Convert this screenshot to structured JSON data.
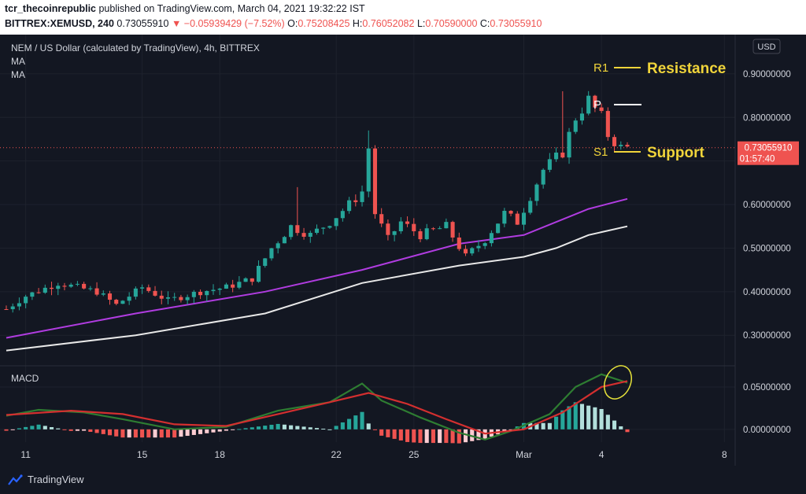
{
  "header": {
    "publisher": "tcr_thecoinrepublic",
    "published_text": "published on TradingView.com, March 04, 2021 19:32:22 IST",
    "symbol": "BITTREX:XEMUSD, 240",
    "last": "0.73055910",
    "change": "−0.05939429 (−7.52%)",
    "open_label": "O:",
    "open": "0.75208425",
    "high_label": "H:",
    "high": "0.76052082",
    "low_label": "L:",
    "low": "0.70590000",
    "close_label": "C:",
    "close": "0.73055910"
  },
  "legend": {
    "title": "NEM / US Dollar (calculated by TradingView), 4h, BITTREX",
    "ma1": "MA",
    "ma2": "MA",
    "macd": "MACD"
  },
  "price_axis": {
    "currency": "USD",
    "ticks": [
      "0.90000000",
      "0.80000000",
      "0.60000000",
      "0.50000000",
      "0.40000000",
      "0.30000000"
    ],
    "tick_values": [
      0.9,
      0.8,
      0.6,
      0.5,
      0.4,
      0.3
    ],
    "current_price": "0.73055910",
    "countdown": "01:57:40"
  },
  "macd_axis": {
    "ticks": [
      "0.05000000",
      "0.00000000"
    ],
    "tick_values": [
      0.05,
      0.0
    ]
  },
  "time_axis": {
    "labels": [
      "11",
      "15",
      "18",
      "22",
      "25",
      "Mar",
      "4",
      "8"
    ]
  },
  "annotations": {
    "r1_label": "R1",
    "resistance": "Resistance",
    "pivot_label": "P",
    "s1_label": "S1",
    "support": "Support"
  },
  "footer": {
    "brand": "TradingView"
  },
  "colors": {
    "background": "#131722",
    "up": "#26a69a",
    "down": "#ef5350",
    "ma_fast": "#b03ce0",
    "ma_slow": "#e8e8e8",
    "macd_line": "#2e7d32",
    "signal_line": "#d32f2f",
    "annotation": "#f0d43a"
  },
  "chart_data": [
    {
      "type": "candlestick",
      "title": "NEM / US Dollar (calculated by TradingView), 4h, BITTREX",
      "ylim": [
        0.23,
        0.99
      ],
      "x_labels": [
        "11",
        "15",
        "18",
        "22",
        "25",
        "Mar",
        "4",
        "8"
      ],
      "key_levels": {
        "R1": 0.88,
        "P": 0.813,
        "S1": 0.695,
        "last": 0.7305591
      },
      "close_path": [
        [
          0,
          0.36
        ],
        [
          3,
          0.39
        ],
        [
          8,
          0.42
        ],
        [
          14,
          0.4
        ],
        [
          17,
          0.37
        ],
        [
          21,
          0.41
        ],
        [
          25,
          0.38
        ],
        [
          30,
          0.4
        ],
        [
          34,
          0.41
        ],
        [
          38,
          0.43
        ],
        [
          41,
          0.5
        ],
        [
          44,
          0.55
        ],
        [
          47,
          0.53
        ],
        [
          50,
          0.56
        ],
        [
          53,
          0.6
        ],
        [
          55,
          0.63
        ],
        [
          56,
          0.73
        ],
        [
          57,
          0.58
        ],
        [
          59,
          0.52
        ],
        [
          61,
          0.56
        ],
        [
          64,
          0.53
        ],
        [
          68,
          0.55
        ],
        [
          71,
          0.48
        ],
        [
          74,
          0.52
        ],
        [
          77,
          0.58
        ],
        [
          79,
          0.56
        ],
        [
          81,
          0.62
        ],
        [
          83,
          0.68
        ],
        [
          86,
          0.72
        ],
        [
          88,
          0.8
        ],
        [
          90,
          0.84
        ],
        [
          92,
          0.8
        ],
        [
          93,
          0.76
        ],
        [
          95,
          0.73
        ]
      ],
      "ma_fast": [
        [
          0,
          0.294
        ],
        [
          20,
          0.35
        ],
        [
          40,
          0.4
        ],
        [
          55,
          0.45
        ],
        [
          70,
          0.51
        ],
        [
          80,
          0.53
        ],
        [
          85,
          0.56
        ],
        [
          90,
          0.59
        ],
        [
          96,
          0.613
        ]
      ],
      "ma_slow": [
        [
          0,
          0.265
        ],
        [
          20,
          0.3
        ],
        [
          40,
          0.35
        ],
        [
          55,
          0.42
        ],
        [
          70,
          0.46
        ],
        [
          80,
          0.48
        ],
        [
          85,
          0.5
        ],
        [
          90,
          0.53
        ],
        [
          96,
          0.55
        ]
      ]
    },
    {
      "type": "line",
      "title": "MACD",
      "ylim": [
        -0.015,
        0.075
      ],
      "series": [
        {
          "name": "MACD",
          "points": [
            [
              0,
              0.016
            ],
            [
              5,
              0.023
            ],
            [
              12,
              0.02
            ],
            [
              18,
              0.012
            ],
            [
              26,
              0.0
            ],
            [
              34,
              0.003
            ],
            [
              42,
              0.022
            ],
            [
              50,
              0.032
            ],
            [
              55,
              0.054
            ],
            [
              58,
              0.034
            ],
            [
              64,
              0.014
            ],
            [
              70,
              -0.004
            ],
            [
              74,
              -0.012
            ],
            [
              78,
              -0.002
            ],
            [
              84,
              0.018
            ],
            [
              88,
              0.05
            ],
            [
              92,
              0.065
            ],
            [
              96,
              0.055
            ]
          ]
        },
        {
          "name": "Signal",
          "points": [
            [
              0,
              0.017
            ],
            [
              10,
              0.022
            ],
            [
              18,
              0.018
            ],
            [
              26,
              0.006
            ],
            [
              34,
              0.004
            ],
            [
              42,
              0.018
            ],
            [
              50,
              0.032
            ],
            [
              56,
              0.043
            ],
            [
              62,
              0.03
            ],
            [
              68,
              0.012
            ],
            [
              74,
              -0.005
            ],
            [
              80,
              0.0
            ],
            [
              86,
              0.02
            ],
            [
              92,
              0.05
            ],
            [
              96,
              0.057
            ]
          ]
        }
      ]
    }
  ]
}
